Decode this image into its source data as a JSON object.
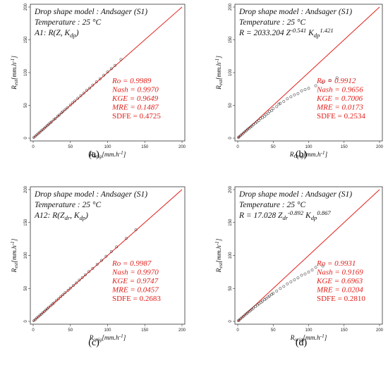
{
  "figure": {
    "panels": [
      {
        "caption": "(a)",
        "annotation_lines": [
          "Drop shape model : Andsager (S1)",
          "Temperature : 25 °C",
          "A1: R(Z, K_dp)"
        ],
        "stats": [
          "Ro = 0.9989",
          "Nash = 0.9970",
          "KGE = 0.9649",
          "MRE = 0.1487",
          "SDFE = 0.4725"
        ],
        "xlabel": "R_orig[mm.h^-1]",
        "ylabel": "R_est[mm.h^-1]"
      },
      {
        "caption": "(b)",
        "annotation_lines": [
          "Drop shape model : Andsager (S1)",
          "Temperature : 25 °C",
          "R = 2033.204 Z^-0.541 K_dp^1.421"
        ],
        "stats": [
          "Ro = 0.9912",
          "Nash = 0.9656",
          "KGE = 0.7006",
          "MRE = 0.0173",
          "SDFE = 0.2534"
        ],
        "xlabel": "R_Orig[mm.h^-1]",
        "ylabel": "R_est[mm.h^-1]"
      },
      {
        "caption": "(c)",
        "annotation_lines": [
          "Drop shape model : Andsager (S1)",
          "Temperature : 25 °C",
          "A12: R(Z_dr, K_dp)"
        ],
        "stats": [
          "Ro = 0.9987",
          "Nash = 0.9970",
          "KGE = 0.9747",
          "MRE = 0.0457",
          "SDFE = 0.2683"
        ],
        "xlabel": "R_orig[mm.h^-1]",
        "ylabel": "R_est[mm.h^-1]"
      },
      {
        "caption": "(d)",
        "annotation_lines": [
          "Drop shape model : Andsager (S1)",
          "Temperature : 25 °C",
          "R = 17.028 Z_dr^-0.892 K_dp^0.867"
        ],
        "stats": [
          "Ro = 0.9931",
          "Nash = 0.9169",
          "KGE = 0.6963",
          "MRE = 0.0204",
          "SDFE = 0.2810"
        ],
        "xlabel": "R_orig[mm.h^-1]",
        "ylabel": "R_est[mm.h^-1]"
      }
    ]
  },
  "chart_data": [
    {
      "type": "scatter",
      "xlim": [
        0,
        200
      ],
      "ylim": [
        0,
        200
      ],
      "x_ticks": [
        "0",
        "50",
        "100",
        "150",
        "200"
      ],
      "y_ticks": [
        "0",
        "50",
        "100",
        "150",
        "200"
      ],
      "reference_line": "y = x",
      "series": [
        {
          "points": [
            [
              1,
              1
            ],
            [
              3,
              3.1
            ],
            [
              5,
              5
            ],
            [
              7,
              7.2
            ],
            [
              9,
              9
            ],
            [
              11,
              11.3
            ],
            [
              13,
              13
            ],
            [
              15,
              15.2
            ],
            [
              17,
              17
            ],
            [
              19,
              19.4
            ],
            [
              21,
              21
            ],
            [
              23,
              23.3
            ],
            [
              25,
              25
            ],
            [
              28,
              28.4
            ],
            [
              30,
              30
            ],
            [
              33,
              33.5
            ],
            [
              35,
              35.2
            ],
            [
              38,
              38.4
            ],
            [
              40,
              40.5
            ],
            [
              43,
              43.6
            ],
            [
              46,
              46.5
            ],
            [
              50,
              50.6
            ],
            [
              53,
              53.8
            ],
            [
              56,
              56.7
            ],
            [
              60,
              60.8
            ],
            [
              64,
              64.8
            ],
            [
              68,
              68.6
            ],
            [
              72,
              73
            ],
            [
              76,
              76.5
            ],
            [
              80,
              81
            ],
            [
              85,
              85.8
            ],
            [
              90,
              90.5
            ],
            [
              95,
              96
            ],
            [
              100,
              101
            ],
            [
              105,
              106
            ],
            [
              110,
              111
            ],
            [
              118,
              120
            ]
          ]
        }
      ]
    },
    {
      "type": "scatter",
      "xlim": [
        0,
        200
      ],
      "ylim": [
        0,
        200
      ],
      "x_ticks": [
        "0",
        "50",
        "100",
        "150",
        "200"
      ],
      "y_ticks": [
        "0",
        "50",
        "100",
        "150",
        "200"
      ],
      "reference_line": "y = x",
      "series": [
        {
          "points": [
            [
              1,
              1
            ],
            [
              2,
              2.1
            ],
            [
              4,
              4
            ],
            [
              6,
              5.8
            ],
            [
              8,
              7.8
            ],
            [
              10,
              9.6
            ],
            [
              12,
              11.4
            ],
            [
              14,
              13.4
            ],
            [
              16,
              15
            ],
            [
              18,
              16.8
            ],
            [
              20,
              18.5
            ],
            [
              22,
              20.5
            ],
            [
              25,
              23
            ],
            [
              27,
              24.5
            ],
            [
              30,
              27
            ],
            [
              32,
              30
            ],
            [
              35,
              31
            ],
            [
              38,
              33.5
            ],
            [
              40,
              36
            ],
            [
              43,
              38
            ],
            [
              45,
              41
            ],
            [
              48,
              42
            ],
            [
              50,
              45
            ],
            [
              55,
              48
            ],
            [
              58,
              52
            ],
            [
              60,
              53
            ],
            [
              65,
              56
            ],
            [
              70,
              60
            ],
            [
              75,
              63
            ],
            [
              80,
              66
            ],
            [
              85,
              68
            ],
            [
              90,
              72
            ],
            [
              95,
              74
            ],
            [
              100,
              76
            ],
            [
              110,
              80
            ],
            [
              120,
              85
            ],
            [
              130,
              88
            ],
            [
              140,
              92
            ]
          ]
        }
      ]
    },
    {
      "type": "scatter",
      "xlim": [
        0,
        200
      ],
      "ylim": [
        0,
        200
      ],
      "x_ticks": [
        "0",
        "50",
        "100",
        "150",
        "200"
      ],
      "y_ticks": [
        "0",
        "50",
        "100",
        "150",
        "200"
      ],
      "reference_line": "y = x",
      "series": [
        {
          "points": [
            [
              1,
              1
            ],
            [
              3,
              3
            ],
            [
              5,
              5.1
            ],
            [
              7,
              7
            ],
            [
              9,
              9.2
            ],
            [
              11,
              11
            ],
            [
              13,
              13.2
            ],
            [
              15,
              15
            ],
            [
              17,
              17.3
            ],
            [
              19,
              19
            ],
            [
              21,
              21.4
            ],
            [
              24,
              24
            ],
            [
              26,
              26.3
            ],
            [
              28,
              28
            ],
            [
              31,
              31.5
            ],
            [
              34,
              34
            ],
            [
              37,
              37.4
            ],
            [
              40,
              40.3
            ],
            [
              43,
              43.5
            ],
            [
              47,
              47.2
            ],
            [
              50,
              50.5
            ],
            [
              54,
              54.4
            ],
            [
              58,
              58.3
            ],
            [
              62,
              62.6
            ],
            [
              66,
              66.4
            ],
            [
              70,
              70.5
            ],
            [
              75,
              75.6
            ],
            [
              80,
              80.4
            ],
            [
              86,
              86.7
            ],
            [
              92,
              92.5
            ],
            [
              98,
              98.8
            ],
            [
              105,
              106
            ],
            [
              112,
              113
            ],
            [
              125,
              126
            ],
            [
              138,
              139
            ]
          ]
        }
      ]
    },
    {
      "type": "scatter",
      "xlim": [
        0,
        200
      ],
      "ylim": [
        0,
        200
      ],
      "x_ticks": [
        "0",
        "50",
        "100",
        "150",
        "200"
      ],
      "y_ticks": [
        "0",
        "50",
        "100",
        "150",
        "200"
      ],
      "reference_line": "y = x",
      "series": [
        {
          "points": [
            [
              1,
              1
            ],
            [
              2,
              2
            ],
            [
              4,
              3.9
            ],
            [
              6,
              5.8
            ],
            [
              8,
              7.6
            ],
            [
              10,
              9.4
            ],
            [
              12,
              11.3
            ],
            [
              14,
              13
            ],
            [
              16,
              14.8
            ],
            [
              18,
              16.5
            ],
            [
              20,
              18.3
            ],
            [
              22,
              20
            ],
            [
              25,
              22.5
            ],
            [
              28,
              25
            ],
            [
              30,
              26.5
            ],
            [
              33,
              29
            ],
            [
              35,
              30.5
            ],
            [
              38,
              33
            ],
            [
              40,
              34.5
            ],
            [
              43,
              37
            ],
            [
              45,
              38.5
            ],
            [
              48,
              41
            ],
            [
              50,
              42.5
            ],
            [
              55,
              46
            ],
            [
              60,
              50
            ],
            [
              65,
              53
            ],
            [
              70,
              57
            ],
            [
              75,
              60
            ],
            [
              80,
              63
            ],
            [
              85,
              66
            ],
            [
              90,
              70
            ],
            [
              95,
              72
            ],
            [
              100,
              75
            ],
            [
              105,
              78
            ],
            [
              110,
              82
            ],
            [
              120,
              84
            ]
          ]
        }
      ]
    }
  ]
}
